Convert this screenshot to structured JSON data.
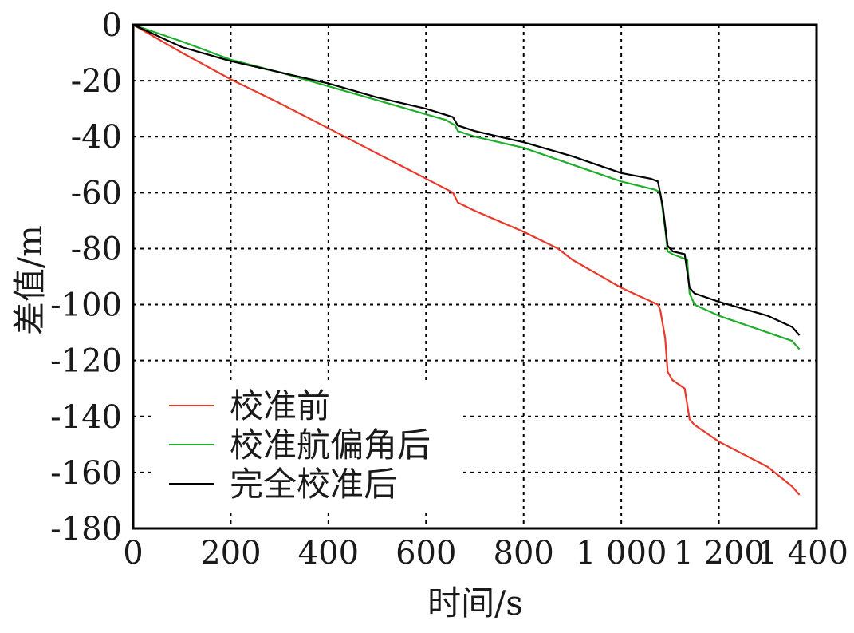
{
  "chart_data": {
    "type": "line",
    "xlabel": "时间/s",
    "ylabel": "差值/m",
    "xlim": [
      0,
      1400
    ],
    "ylim": [
      -180,
      0
    ],
    "x_ticks": [
      0,
      200,
      400,
      600,
      800,
      1000,
      1200,
      1400
    ],
    "x_tick_labels": [
      "0",
      "200",
      "400",
      "600",
      "800",
      "1 000",
      "1 200",
      "1 400"
    ],
    "y_ticks": [
      0,
      -20,
      -40,
      -60,
      -80,
      -100,
      -120,
      -140,
      -160,
      -180
    ],
    "y_tick_labels": [
      "0",
      "-20",
      "-40",
      "-60",
      "-80",
      "-100",
      "-120",
      "-140",
      "-160",
      "-180"
    ],
    "grid": true,
    "legend_position": "bottom-left",
    "series": [
      {
        "name": "校准前",
        "color": "#e8392a",
        "points": [
          [
            0,
            0
          ],
          [
            100,
            -10
          ],
          [
            200,
            -19.5
          ],
          [
            300,
            -28
          ],
          [
            400,
            -37
          ],
          [
            500,
            -46
          ],
          [
            600,
            -55
          ],
          [
            655,
            -60
          ],
          [
            665,
            -63.5
          ],
          [
            700,
            -66.5
          ],
          [
            800,
            -74
          ],
          [
            870,
            -80
          ],
          [
            900,
            -84
          ],
          [
            1000,
            -94
          ],
          [
            1075,
            -100
          ],
          [
            1080,
            -102
          ],
          [
            1090,
            -112
          ],
          [
            1095,
            -124
          ],
          [
            1105,
            -127
          ],
          [
            1130,
            -130
          ],
          [
            1140,
            -141
          ],
          [
            1150,
            -143
          ],
          [
            1200,
            -149
          ],
          [
            1300,
            -158
          ],
          [
            1350,
            -165
          ],
          [
            1365,
            -168
          ]
        ]
      },
      {
        "name": "校准航偏角后",
        "color": "#1fae2a",
        "points": [
          [
            0,
            0
          ],
          [
            100,
            -6
          ],
          [
            200,
            -12.5
          ],
          [
            300,
            -17
          ],
          [
            400,
            -22
          ],
          [
            500,
            -27
          ],
          [
            600,
            -32
          ],
          [
            640,
            -34
          ],
          [
            660,
            -36
          ],
          [
            665,
            -38
          ],
          [
            700,
            -40
          ],
          [
            800,
            -44
          ],
          [
            900,
            -50
          ],
          [
            1000,
            -56
          ],
          [
            1070,
            -59
          ],
          [
            1080,
            -60
          ],
          [
            1090,
            -73
          ],
          [
            1095,
            -81
          ],
          [
            1105,
            -82
          ],
          [
            1135,
            -84
          ],
          [
            1140,
            -96
          ],
          [
            1150,
            -100
          ],
          [
            1200,
            -104
          ],
          [
            1300,
            -110
          ],
          [
            1350,
            -113
          ],
          [
            1365,
            -116
          ]
        ]
      },
      {
        "name": "完全校准后",
        "color": "#000000",
        "points": [
          [
            0,
            0
          ],
          [
            100,
            -8
          ],
          [
            200,
            -13
          ],
          [
            300,
            -17
          ],
          [
            400,
            -21
          ],
          [
            500,
            -26
          ],
          [
            600,
            -30
          ],
          [
            655,
            -33
          ],
          [
            665,
            -36
          ],
          [
            700,
            -38
          ],
          [
            800,
            -42
          ],
          [
            900,
            -47
          ],
          [
            1000,
            -53
          ],
          [
            1060,
            -55
          ],
          [
            1075,
            -56
          ],
          [
            1085,
            -65
          ],
          [
            1095,
            -79
          ],
          [
            1105,
            -81
          ],
          [
            1130,
            -82
          ],
          [
            1140,
            -94
          ],
          [
            1150,
            -96
          ],
          [
            1200,
            -99
          ],
          [
            1300,
            -104
          ],
          [
            1350,
            -108
          ],
          [
            1365,
            -111
          ]
        ]
      }
    ]
  }
}
